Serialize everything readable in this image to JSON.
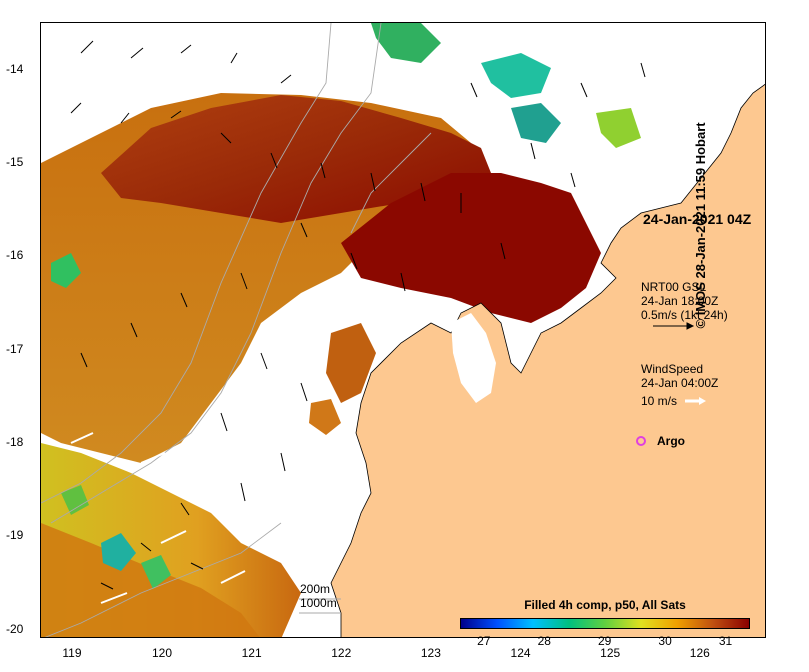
{
  "stamp": "24-Jan-2021 04Z",
  "current_legend": {
    "source": "NRT00 GSL",
    "time": "24-Jan 18:00Z",
    "scale": "0.5m/s (1kt 24h)"
  },
  "wind_legend": {
    "title": "WindSpeed",
    "time": "24-Jan 04:00Z",
    "scale": "10 m/s"
  },
  "argo_label": "Argo",
  "depth_labels": {
    "a": "200m",
    "b": "1000m"
  },
  "colorbar": {
    "title": "Filled 4h comp, p50, All Sats",
    "ticks": [
      "27",
      "28",
      "29",
      "30",
      "31"
    ],
    "min": 26.6,
    "max": 31.4,
    "stops": [
      "#00008b",
      "#0050ff",
      "#00c0ff",
      "#00c080",
      "#60d040",
      "#e0e020",
      "#f0a000",
      "#c05010",
      "#8b0000"
    ]
  },
  "credit": "© IMOS 28-Jan-2021 11:59 Hobart",
  "axes": {
    "x_ticks": [
      "119",
      "120",
      "121",
      "122",
      "123",
      "124",
      "125",
      "126"
    ],
    "y_ticks": [
      "-14",
      "-15",
      "-16",
      "-17",
      "-18",
      "-19",
      "-20"
    ],
    "x_range": [
      118.65,
      126.75
    ],
    "y_range": [
      -13.5,
      -20.1
    ]
  },
  "colors": {
    "land": "#fdc890",
    "current_arrow": "#000000",
    "wind_arrow": "#ffffff",
    "argo": "#e040e0"
  }
}
